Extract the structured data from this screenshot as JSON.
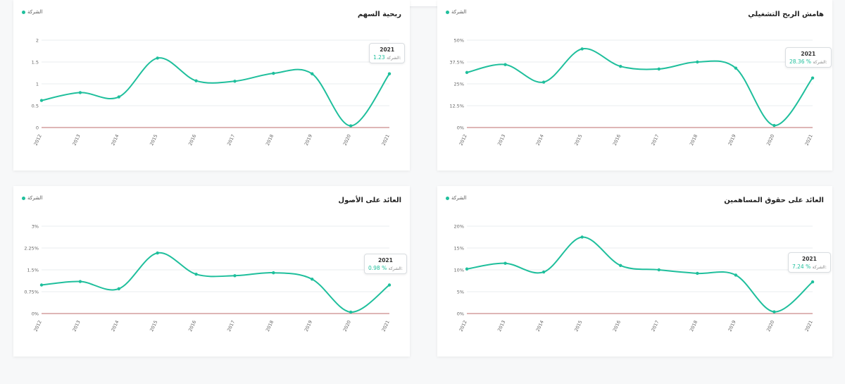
{
  "colors": {
    "series": "#1fbf9c",
    "baseline": "#c98b8b",
    "grid": "#e9ecef"
  },
  "legend_label": "الشركة",
  "chart_data": [
    {
      "type": "line",
      "title": "ربحية السهم",
      "x": [
        "2012",
        "2013",
        "2014",
        "2015",
        "2016",
        "2017",
        "2018",
        "2019",
        "2020",
        "2021"
      ],
      "ticks": [
        "0",
        "0.5",
        "1",
        "1.5",
        "2"
      ],
      "ylim": [
        0,
        2
      ],
      "series": [
        {
          "name": "الشركة",
          "values": [
            0.62,
            0.8,
            0.7,
            1.59,
            1.07,
            1.06,
            1.24,
            1.23,
            0.04,
            1.23
          ]
        }
      ],
      "tooltip": {
        "year": "2021",
        "label": "الشركة:",
        "value": "1.23"
      }
    },
    {
      "type": "line",
      "title": "هامش الربح التشغيلي",
      "x": [
        "2012",
        "2013",
        "2014",
        "2015",
        "2016",
        "2017",
        "2018",
        "2019",
        "2020",
        "2021"
      ],
      "ticks": [
        "0%",
        "12.5%",
        "25%",
        "37.5%",
        "50%"
      ],
      "ylim": [
        0,
        50
      ],
      "series": [
        {
          "name": "الشركة",
          "values": [
            31.5,
            36.0,
            26.0,
            45.0,
            35.0,
            33.5,
            37.5,
            34.0,
            1.2,
            28.36
          ]
        }
      ],
      "tooltip": {
        "year": "2021",
        "label": "الشركة:",
        "value": "28.36 %"
      }
    },
    {
      "type": "line",
      "title": "العائد على الأصول",
      "x": [
        "2012",
        "2013",
        "2014",
        "2015",
        "2016",
        "2017",
        "2018",
        "2019",
        "2020",
        "2021"
      ],
      "ticks": [
        "0%",
        "0.75%",
        "1.5%",
        "2.25%",
        "3%"
      ],
      "ylim": [
        0,
        3
      ],
      "series": [
        {
          "name": "الشركة",
          "values": [
            0.98,
            1.1,
            0.85,
            2.08,
            1.35,
            1.3,
            1.4,
            1.18,
            0.05,
            0.98
          ]
        }
      ],
      "tooltip": {
        "year": "2021",
        "label": "الشركة:",
        "value": "0.98 %"
      }
    },
    {
      "type": "line",
      "title": "العائد على حقوق المساهمين",
      "x": [
        "2012",
        "2013",
        "2014",
        "2015",
        "2016",
        "2017",
        "2018",
        "2019",
        "2020",
        "2021"
      ],
      "ticks": [
        "0%",
        "5%",
        "10%",
        "15%",
        "20%"
      ],
      "ylim": [
        0,
        20
      ],
      "series": [
        {
          "name": "الشركة",
          "values": [
            10.2,
            11.5,
            9.5,
            17.5,
            11.0,
            10.0,
            9.2,
            8.8,
            0.4,
            7.24
          ]
        }
      ],
      "tooltip": {
        "year": "2021",
        "label": "الشركة:",
        "value": "7.24 %"
      }
    }
  ]
}
